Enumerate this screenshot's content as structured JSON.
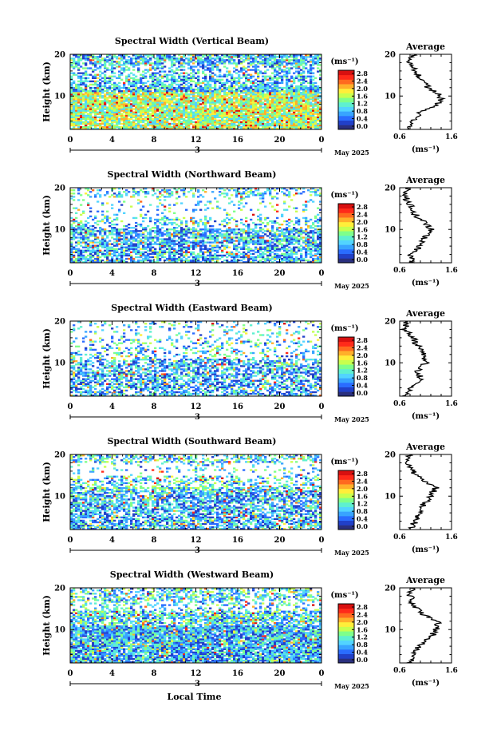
{
  "chart_data": [
    {
      "type": "heatmap",
      "title": "Spectral Width (Vertical Beam)",
      "ylabel": "Height (km)",
      "xlim": [
        0,
        24
      ],
      "ylim": [
        2,
        20
      ],
      "x_ticks": [
        "0",
        "4",
        "8",
        "12",
        "16",
        "20",
        "0"
      ],
      "y_ticks": [
        "10",
        "20"
      ],
      "day_label": "3",
      "month_label": "May 2025",
      "colorbar_unit": "(ms⁻¹)",
      "colorbar_ticks": [
        "0.0",
        "0.4",
        "0.8",
        "1.2",
        "1.6",
        "2.0",
        "2.4",
        "2.8"
      ],
      "profile": {
        "title": "Average",
        "xlabel": "(ms⁻¹)",
        "xlim": [
          0.6,
          1.6
        ],
        "x_ticks": [
          "0.6",
          "1.6"
        ],
        "y_ticks": [
          "10",
          "20"
        ],
        "heights": [
          2,
          4,
          6,
          8,
          10,
          12,
          14,
          16,
          18,
          20
        ],
        "values": [
          0.75,
          0.85,
          1.0,
          1.35,
          1.4,
          1.15,
          1.0,
          0.9,
          0.8,
          0.85
        ]
      }
    },
    {
      "type": "heatmap",
      "title": "Spectral Width (Northward Beam)",
      "ylabel": "Height (km)",
      "xlim": [
        0,
        24
      ],
      "ylim": [
        2,
        20
      ],
      "x_ticks": [
        "0",
        "4",
        "8",
        "12",
        "16",
        "20",
        "0"
      ],
      "y_ticks": [
        "10",
        "20"
      ],
      "day_label": "3",
      "month_label": "May 2025",
      "colorbar_unit": "(ms⁻¹)",
      "colorbar_ticks": [
        "0.0",
        "0.4",
        "0.8",
        "1.2",
        "1.6",
        "2.0",
        "2.4",
        "2.8"
      ],
      "profile": {
        "title": "Average",
        "xlabel": "(ms⁻¹)",
        "xlim": [
          0.6,
          1.6
        ],
        "x_ticks": [
          "0.6",
          "1.6"
        ],
        "y_ticks": [
          "10",
          "20"
        ],
        "heights": [
          2,
          4,
          6,
          8,
          10,
          12,
          14,
          16,
          18,
          20
        ],
        "values": [
          0.85,
          0.8,
          1.0,
          1.1,
          1.2,
          1.05,
          0.85,
          0.8,
          0.7,
          0.75
        ]
      }
    },
    {
      "type": "heatmap",
      "title": "Spectral Width (Eastward Beam)",
      "ylabel": "Height (km)",
      "xlim": [
        0,
        24
      ],
      "ylim": [
        2,
        20
      ],
      "x_ticks": [
        "0",
        "4",
        "8",
        "12",
        "16",
        "20",
        "0"
      ],
      "y_ticks": [
        "10",
        "20"
      ],
      "day_label": "3",
      "month_label": "May 2025",
      "colorbar_unit": "(ms⁻¹)",
      "colorbar_ticks": [
        "0.0",
        "0.4",
        "0.8",
        "1.2",
        "1.6",
        "2.0",
        "2.4",
        "2.8"
      ],
      "profile": {
        "title": "Average",
        "xlabel": "(ms⁻¹)",
        "xlim": [
          0.6,
          1.6
        ],
        "x_ticks": [
          "0.6",
          "1.6"
        ],
        "y_ticks": [
          "10",
          "20"
        ],
        "heights": [
          2,
          4,
          6,
          8,
          10,
          12,
          14,
          16,
          18,
          20
        ],
        "values": [
          0.7,
          0.8,
          1.0,
          0.95,
          1.1,
          1.05,
          0.95,
          0.85,
          0.7,
          0.75
        ]
      }
    },
    {
      "type": "heatmap",
      "title": "Spectral Width (Southward Beam)",
      "ylabel": "Height (km)",
      "xlim": [
        0,
        24
      ],
      "ylim": [
        2,
        20
      ],
      "x_ticks": [
        "0",
        "4",
        "8",
        "12",
        "16",
        "20",
        "0"
      ],
      "y_ticks": [
        "10",
        "20"
      ],
      "day_label": "3",
      "month_label": "May 2025",
      "colorbar_unit": "(ms⁻¹)",
      "colorbar_ticks": [
        "0.0",
        "0.4",
        "0.8",
        "1.2",
        "1.6",
        "2.0",
        "2.4",
        "2.8"
      ],
      "profile": {
        "title": "Average",
        "xlabel": "(ms⁻¹)",
        "xlim": [
          0.6,
          1.6
        ],
        "x_ticks": [
          "0.6",
          "1.6"
        ],
        "y_ticks": [
          "10",
          "20"
        ],
        "heights": [
          2,
          4,
          6,
          8,
          10,
          12,
          14,
          16,
          18,
          20
        ],
        "values": [
          0.8,
          0.9,
          1.0,
          1.05,
          1.2,
          1.3,
          1.0,
          0.85,
          0.75,
          0.8
        ]
      }
    },
    {
      "type": "heatmap",
      "title": "Spectral Width (Westward Beam)",
      "ylabel": "Height (km)",
      "xlim": [
        0,
        24
      ],
      "ylim": [
        2,
        20
      ],
      "x_ticks": [
        "0",
        "4",
        "8",
        "12",
        "16",
        "20",
        "0"
      ],
      "y_ticks": [
        "10",
        "20"
      ],
      "day_label": "3",
      "month_label": "May 2025",
      "xlabel": "Local Time",
      "colorbar_unit": "(ms⁻¹)",
      "colorbar_ticks": [
        "0.0",
        "0.4",
        "0.8",
        "1.2",
        "1.6",
        "2.0",
        "2.4",
        "2.8"
      ],
      "profile": {
        "title": "Average",
        "xlabel": "(ms⁻¹)",
        "xlim": [
          0.6,
          1.6
        ],
        "x_ticks": [
          "0.6",
          "1.6"
        ],
        "y_ticks": [
          "10",
          "20"
        ],
        "heights": [
          2,
          4,
          6,
          8,
          10,
          12,
          14,
          16,
          18,
          20
        ],
        "values": [
          0.8,
          0.85,
          0.95,
          1.2,
          1.3,
          1.35,
          1.0,
          0.85,
          0.8,
          0.85
        ]
      }
    }
  ],
  "colormap": [
    "#2a2f7e",
    "#2140c8",
    "#2a6cff",
    "#38a4ff",
    "#52d4ff",
    "#5ef0d0",
    "#7fff8a",
    "#c8ff4e",
    "#ffee3a",
    "#ffb02a",
    "#ff6a1f",
    "#ff2a1a",
    "#d81010"
  ]
}
